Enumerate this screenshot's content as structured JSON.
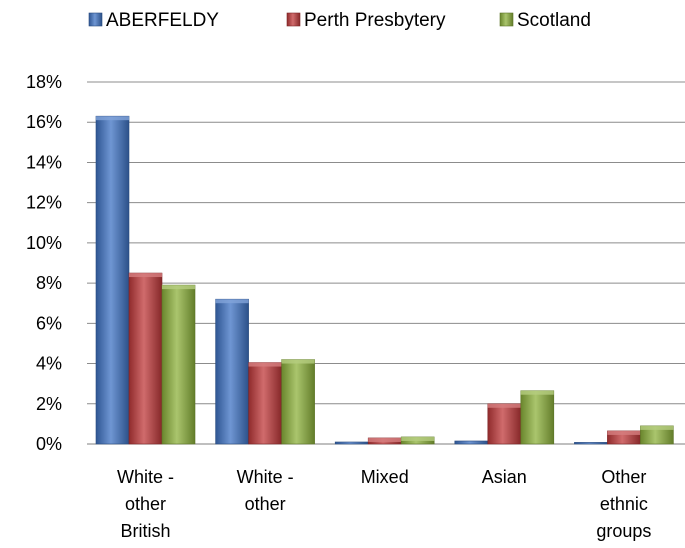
{
  "chart_data": {
    "type": "bar",
    "categories": [
      [
        "White -",
        "other",
        "British"
      ],
      [
        "White -",
        "other"
      ],
      [
        "Mixed"
      ],
      [
        "Asian"
      ],
      [
        "Other",
        "ethnic",
        "groups"
      ]
    ],
    "series": [
      {
        "name": "ABERFELDY",
        "color": "#3f73c4",
        "values": [
          16.3,
          7.2,
          0.1,
          0.15,
          0.08
        ]
      },
      {
        "name": "Perth Presbytery",
        "color": "#c0393b",
        "values": [
          8.5,
          4.05,
          0.3,
          2.0,
          0.65
        ]
      },
      {
        "name": "Scotland",
        "color": "#8db23c",
        "values": [
          7.9,
          4.2,
          0.35,
          2.65,
          0.9
        ]
      }
    ],
    "ylim": [
      0,
      18
    ],
    "yticks": [
      "0%",
      "2%",
      "4%",
      "6%",
      "8%",
      "10%",
      "12%",
      "14%",
      "16%",
      "18%"
    ],
    "grid": true,
    "legend_position": "top"
  }
}
